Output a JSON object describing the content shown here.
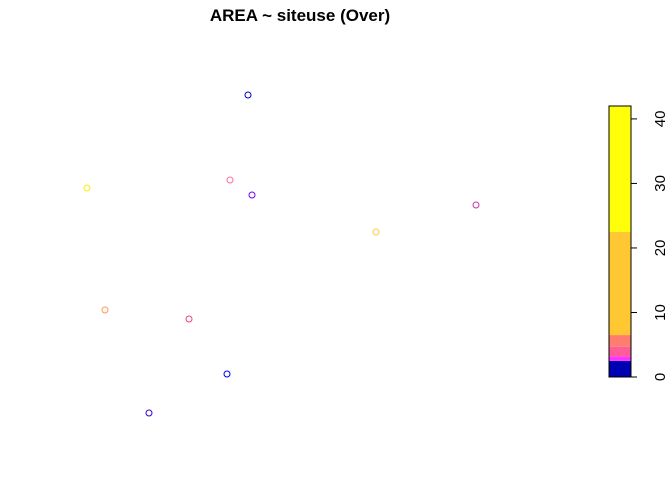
{
  "chart_data": {
    "type": "scatter",
    "title": "AREA ~ siteuse (Over)",
    "xlabel": "",
    "ylabel": "",
    "axes_shown": false,
    "points": [
      {
        "id": 1,
        "color": "#0000cc"
      },
      {
        "id": 2,
        "color": "#ff6ea0"
      },
      {
        "id": 3,
        "color": "#6a00ff"
      },
      {
        "id": 4,
        "color": "#ffee00"
      },
      {
        "id": 5,
        "color": "#ffcc33"
      },
      {
        "id": 6,
        "color": "#cc33a8"
      },
      {
        "id": 7,
        "color": "#ff9955"
      },
      {
        "id": 8,
        "color": "#ee4477"
      },
      {
        "id": 9,
        "color": "#0000ee"
      },
      {
        "id": 10,
        "color": "#3300cc"
      }
    ],
    "colorbar": {
      "min": 0,
      "max": 42,
      "ticks": [
        0,
        10,
        20,
        30,
        40
      ],
      "bands": [
        {
          "from": 0,
          "to": 2.5,
          "color": "#0000b3"
        },
        {
          "from": 2.5,
          "to": 3.2,
          "color": "#ff33ff"
        },
        {
          "from": 3.2,
          "to": 4.7,
          "color": "#ff5c9a"
        },
        {
          "from": 4.7,
          "to": 6.5,
          "color": "#ff7d6e"
        },
        {
          "from": 6.5,
          "to": 22.5,
          "color": "#ffc832"
        },
        {
          "from": 22.5,
          "to": 42,
          "color": "#ffff0a"
        }
      ]
    }
  }
}
